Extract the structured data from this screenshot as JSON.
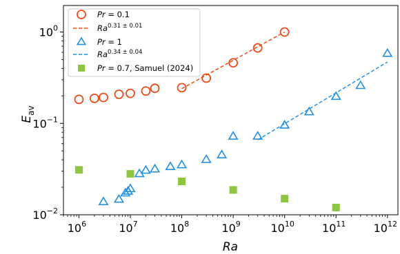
{
  "chart_data": {
    "type": "scatter",
    "x_scale": "log",
    "y_scale": "log",
    "xlim": [
      500000,
      1600000000000
    ],
    "ylim": [
      0.01,
      1.95
    ],
    "xlabel_main": "Ra",
    "ylabel_main": "E",
    "ylabel_sub": "av",
    "x_ticks": [
      {
        "value": 1000000,
        "base": "10",
        "exp": "6"
      },
      {
        "value": 10000000,
        "base": "10",
        "exp": "7"
      },
      {
        "value": 100000000,
        "base": "10",
        "exp": "8"
      },
      {
        "value": 1000000000,
        "base": "10",
        "exp": "9"
      },
      {
        "value": 10000000000,
        "base": "10",
        "exp": "10"
      },
      {
        "value": 100000000000,
        "base": "10",
        "exp": "11"
      },
      {
        "value": 1000000000000,
        "base": "10",
        "exp": "12"
      }
    ],
    "y_ticks": [
      {
        "value": 0.01,
        "base": "10",
        "exp": "−2"
      },
      {
        "value": 0.1,
        "base": "10",
        "exp": "−1"
      },
      {
        "value": 1,
        "base": "10",
        "exp": "0"
      }
    ],
    "legend_position": "top-left",
    "series": [
      {
        "key": "pr01",
        "name": "Pr = 0.1",
        "legend_var": "Pr",
        "legend_rest": " = 0.1",
        "marker": "circle",
        "color": "#f24a14",
        "points": [
          [
            1000000,
            0.183
          ],
          [
            2000000,
            0.188
          ],
          [
            3000000,
            0.192
          ],
          [
            6000000,
            0.208
          ],
          [
            10000000,
            0.213
          ],
          [
            20000000,
            0.226
          ],
          [
            30000000,
            0.242
          ],
          [
            100000000,
            0.246
          ],
          [
            300000000,
            0.313
          ],
          [
            1000000000,
            0.46
          ],
          [
            3000000000,
            0.67
          ],
          [
            10000000000,
            1.0
          ]
        ]
      },
      {
        "key": "fit01",
        "name": "Ra^0.31±0.01",
        "legend_var": "Ra",
        "legend_sup": "0.31 ± 0.01",
        "marker": "dashed-line",
        "color": "#f24a14",
        "x_range": [
          100000000,
          10000000000
        ],
        "y_range": [
          0.24,
          1.0
        ]
      },
      {
        "key": "pr1",
        "name": "Pr = 1",
        "legend_var": "Pr",
        "legend_rest": " = 1",
        "marker": "triangle",
        "color": "#1f8fe8",
        "points": [
          [
            3000000,
            0.0138
          ],
          [
            6000000,
            0.0147
          ],
          [
            8000000,
            0.0172
          ],
          [
            9000000,
            0.018
          ],
          [
            10000000,
            0.0192
          ],
          [
            15000000,
            0.028
          ],
          [
            20000000,
            0.0305
          ],
          [
            30000000,
            0.0315
          ],
          [
            60000000,
            0.0335
          ],
          [
            100000000,
            0.035
          ],
          [
            300000000,
            0.04
          ],
          [
            600000000,
            0.045
          ],
          [
            1000000000,
            0.072
          ],
          [
            3000000000,
            0.072
          ],
          [
            10000000000,
            0.095
          ],
          [
            30000000000,
            0.133
          ],
          [
            100000000000,
            0.196
          ],
          [
            300000000000,
            0.258
          ],
          [
            1000000000000,
            0.58
          ]
        ]
      },
      {
        "key": "fit1",
        "name": "Ra^0.34±0.04",
        "legend_var": "Ra",
        "legend_sup": "0.34 ± 0.04",
        "marker": "dashed-line",
        "color": "#1f8fe8",
        "x_range": [
          3000000000,
          1000000000000
        ],
        "y_range": [
          0.066,
          0.47
        ]
      },
      {
        "key": "samuel",
        "name": "Pr = 0.7, Samuel (2024)",
        "legend_var": "Pr",
        "legend_rest": " = 0.7, Samuel (2024)",
        "marker": "square",
        "color": "#8dc63f",
        "points": [
          [
            1000000,
            0.031
          ],
          [
            10000000,
            0.028
          ],
          [
            100000000,
            0.0232
          ],
          [
            1000000000,
            0.0187
          ],
          [
            10000000000,
            0.015
          ],
          [
            100000000000,
            0.012
          ]
        ]
      }
    ]
  }
}
